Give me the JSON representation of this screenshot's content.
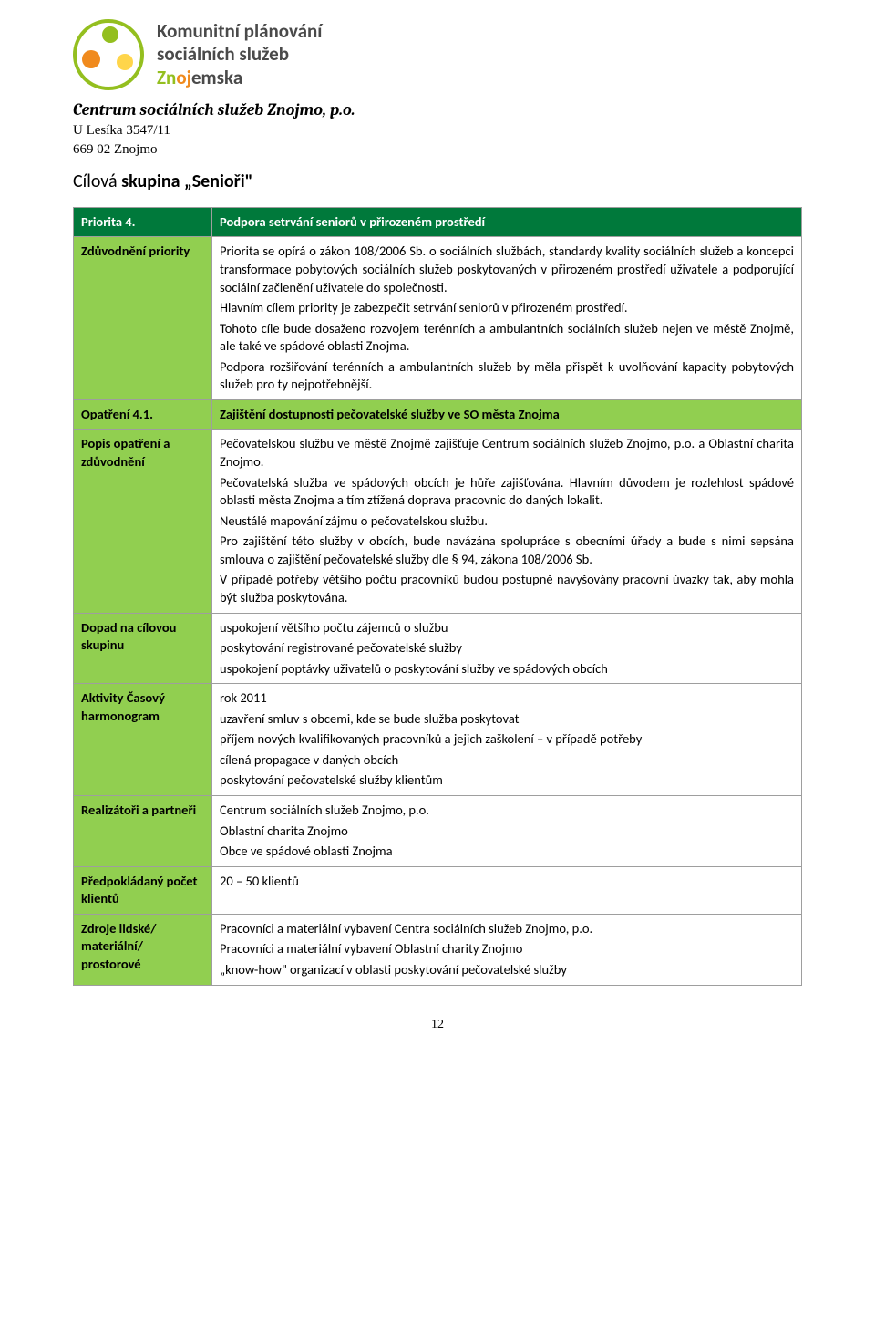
{
  "header": {
    "line1": "Komunitní plánování",
    "line2": "sociálních služeb",
    "line3_parts": [
      "Zn",
      "oj",
      "emska"
    ],
    "org_name": "Centrum sociálních služeb Znojmo, p.o.",
    "addr1": "U Lesíka 3547/11",
    "addr2": "669 02 Znojmo"
  },
  "section_title_prefix": "Cílová ",
  "section_title_bold": "skupina „Senioři\"",
  "rows": {
    "priorita_label": "Priorita 4.",
    "priorita_value": "Podpora setrvání seniorů v přirozeném prostředí",
    "zduvodneni_label": "Zdůvodnění priority",
    "zduvodneni_paras": [
      "Priorita se opírá o zákon 108/2006 Sb. o sociálních službách, standardy kvality sociálních služeb a koncepci transformace pobytových sociálních služeb poskytovaných v přirozeném prostředí uživatele a podporující sociální začlenění uživatele do společnosti.",
      "Hlavním cílem priority je zabezpečit setrvání seniorů v přirozeném prostředí.",
      "Tohoto cíle bude dosaženo rozvojem terénních a ambulantních sociálních služeb nejen ve městě Znojmě, ale také ve spádové oblasti Znojma.",
      "Podpora rozšiřování terénních a ambulantních služeb by měla přispět k uvolňování kapacity pobytových služeb pro ty nejpotřebnější."
    ],
    "opatreni_label": "Opatření 4.1.",
    "opatreni_value": "Zajištění dostupnosti pečovatelské služby ve SO města Znojma",
    "popis_label": "Popis opatření a zdůvodnění",
    "popis_paras": [
      "Pečovatelskou službu ve městě Znojmě zajišťuje Centrum sociálních služeb Znojmo, p.o. a Oblastní charita Znojmo.",
      "Pečovatelská služba ve spádových obcích je hůře zajišťována. Hlavním důvodem je rozlehlost spádové oblasti města Znojma a tím ztížená doprava pracovnic do daných lokalit.",
      "Neustálé mapování zájmu o pečovatelskou službu.",
      "Pro zajištění této služby v obcích, bude navázána spolupráce s obecními úřady a bude s nimi sepsána smlouva o zajištění pečovatelské služby dle §  94, zákona 108/2006 Sb.",
      "V případě potřeby většího počtu pracovníků budou postupně navyšovány pracovní úvazky tak, aby mohla být služba poskytována."
    ],
    "dopad_label": "Dopad na cílovou skupinu",
    "dopad_paras": [
      "uspokojení většího počtu zájemců o službu",
      "poskytování registrované pečovatelské služby",
      "uspokojení poptávky uživatelů o poskytování služby ve spádových obcích"
    ],
    "aktivity_label": "Aktivity Časový harmonogram",
    "aktivity_paras": [
      "rok 2011",
      "uzavření smluv s obcemi, kde se bude služba poskytovat",
      " příjem nových kvalifikovaných pracovníků a jejich zaškolení – v případě potřeby",
      " cílená propagace v daných obcích",
      " poskytování pečovatelské služby klientům"
    ],
    "realiz_label": "Realizátoři a partneři",
    "realiz_paras": [
      "Centrum sociálních služeb Znojmo, p.o.",
      "Oblastní charita Znojmo",
      "Obce ve spádové oblasti Znojma"
    ],
    "predp_label": "Předpokládaný počet klientů",
    "predp_value": "20 – 50 klientů",
    "zdroje_label": "Zdroje lidské/ materiální/ prostorové",
    "zdroje_paras": [
      "Pracovníci a materiální vybavení Centra sociálních služeb Znojmo, p.o.",
      "Pracovníci a materiální vybavení Oblastní charity Znojmo",
      "„know-how\" organizací v oblasti poskytování pečovatelské služby"
    ]
  },
  "page_number": "12",
  "colors": {
    "green_dark": "#00793b",
    "green_light": "#91cf50",
    "logo_green": "#94bf1f",
    "logo_orange": "#f08a1d",
    "logo_yellow": "#ffd54a",
    "border": "#9e9e9e",
    "text_gray": "#4a4a4a"
  }
}
